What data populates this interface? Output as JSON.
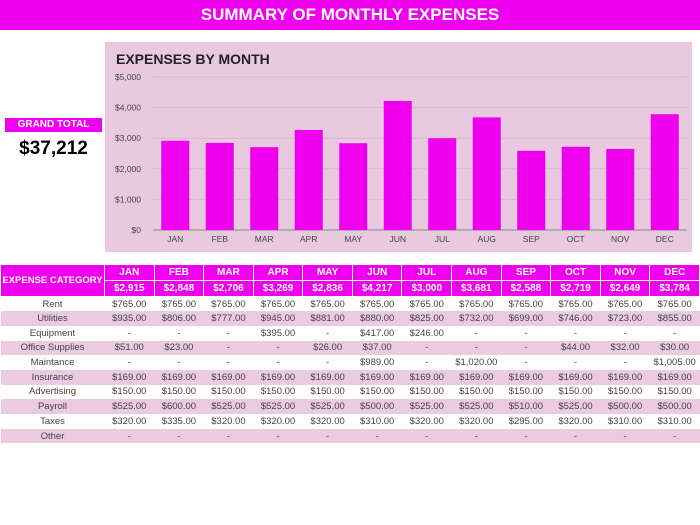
{
  "title": "SUMMARY OF MONTHLY EXPENSES",
  "grand_total": {
    "label": "GRAND TOTAL",
    "value": "$37,212"
  },
  "chart_data": {
    "type": "bar",
    "title": "EXPENSES BY MONTH",
    "categories": [
      "JAN",
      "FEB",
      "MAR",
      "APR",
      "MAY",
      "JUN",
      "JUL",
      "AUG",
      "SEP",
      "OCT",
      "NOV",
      "DEC"
    ],
    "values": [
      2915,
      2848,
      2706,
      3269,
      2836,
      4217,
      3000,
      3681,
      2588,
      2719,
      2649,
      3784
    ],
    "ylim": [
      0,
      5000
    ],
    "yticks": [
      "$0",
      "$1,000",
      "$2,000",
      "$3,000",
      "$4,000",
      "$5,000"
    ],
    "bar_color": "#ee00ee",
    "grid": true
  },
  "table": {
    "category_header": "EXPENSE CATEGORY",
    "months": [
      "JAN",
      "FEB",
      "MAR",
      "APR",
      "MAY",
      "JUN",
      "JUL",
      "AUG",
      "SEP",
      "OCT",
      "NOV",
      "DEC"
    ],
    "totals": [
      "$2,915",
      "$2,848",
      "$2,706",
      "$3,269",
      "$2,836",
      "$4,217",
      "$3,000",
      "$3,681",
      "$2,588",
      "$2,719",
      "$2,649",
      "$3,784"
    ],
    "rows": [
      {
        "category": "Rent",
        "values": [
          "$765.00",
          "$765.00",
          "$765.00",
          "$765.00",
          "$765.00",
          "$765.00",
          "$765.00",
          "$765.00",
          "$765.00",
          "$765.00",
          "$765.00",
          "$765.00"
        ]
      },
      {
        "category": "Utilities",
        "values": [
          "$935.00",
          "$806.00",
          "$777.00",
          "$945.00",
          "$881.00",
          "$880.00",
          "$825.00",
          "$732.00",
          "$699.00",
          "$746.00",
          "$723.00",
          "$855.00"
        ]
      },
      {
        "category": "Equipment",
        "values": [
          "-",
          "-",
          "-",
          "$395.00",
          "-",
          "$417.00",
          "$246.00",
          "-",
          "-",
          "-",
          "-",
          "-"
        ]
      },
      {
        "category": "Office Supplies",
        "values": [
          "$51.00",
          "$23.00",
          "-",
          "-",
          "$26.00",
          "$37.00",
          "-",
          "-",
          "-",
          "$44.00",
          "$32.00",
          "$30.00"
        ]
      },
      {
        "category": "Maintance",
        "values": [
          "-",
          "-",
          "-",
          "-",
          "-",
          "$989.00",
          "-",
          "$1,020.00",
          "-",
          "-",
          "-",
          "$1,005.00"
        ]
      },
      {
        "category": "Insurance",
        "values": [
          "$169.00",
          "$169.00",
          "$169.00",
          "$169.00",
          "$169.00",
          "$169.00",
          "$169.00",
          "$169.00",
          "$169.00",
          "$169.00",
          "$169.00",
          "$169.00"
        ]
      },
      {
        "category": "Advertising",
        "values": [
          "$150.00",
          "$150.00",
          "$150.00",
          "$150.00",
          "$150.00",
          "$150.00",
          "$150.00",
          "$150.00",
          "$150.00",
          "$150.00",
          "$150.00",
          "$150.00"
        ]
      },
      {
        "category": "Payroll",
        "values": [
          "$525.00",
          "$600.00",
          "$525.00",
          "$525.00",
          "$525.00",
          "$500.00",
          "$525.00",
          "$525.00",
          "$510.00",
          "$525.00",
          "$500.00",
          "$500.00"
        ]
      },
      {
        "category": "Taxes",
        "values": [
          "$320.00",
          "$335.00",
          "$320.00",
          "$320.00",
          "$320.00",
          "$310.00",
          "$320.00",
          "$320.00",
          "$295.00",
          "$320.00",
          "$310.00",
          "$310.00"
        ]
      },
      {
        "category": "Other",
        "values": [
          "-",
          "-",
          "-",
          "-",
          "-",
          "-",
          "-",
          "-",
          "-",
          "-",
          "-",
          "-"
        ]
      }
    ]
  }
}
